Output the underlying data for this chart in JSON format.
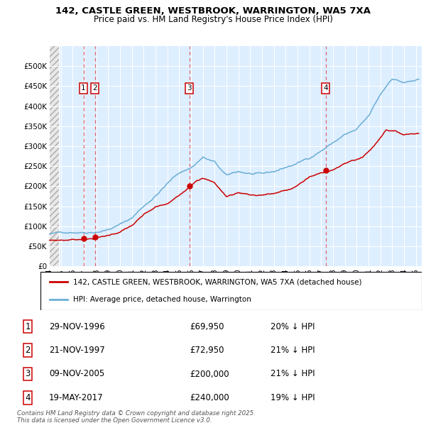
{
  "title_line1": "142, CASTLE GREEN, WESTBROOK, WARRINGTON, WA5 7XA",
  "title_line2": "Price paid vs. HM Land Registry's House Price Index (HPI)",
  "ylim": [
    0,
    550000
  ],
  "yticks": [
    0,
    50000,
    100000,
    150000,
    200000,
    250000,
    300000,
    350000,
    400000,
    450000,
    500000
  ],
  "ytick_labels": [
    "£0",
    "£50K",
    "£100K",
    "£150K",
    "£200K",
    "£250K",
    "£300K",
    "£350K",
    "£400K",
    "£450K",
    "£500K"
  ],
  "hpi_color": "#6baed6",
  "price_color": "#cc0000",
  "vline_color": "#e05050",
  "bg_color": "#ddeeff",
  "sales": [
    {
      "date_num": 1996.91,
      "price": 69950,
      "label": "1",
      "date_str": "29-NOV-1996",
      "pct": "20% ↓ HPI"
    },
    {
      "date_num": 1997.89,
      "price": 72950,
      "label": "2",
      "date_str": "21-NOV-1997",
      "pct": "21% ↓ HPI"
    },
    {
      "date_num": 2005.86,
      "price": 200000,
      "label": "3",
      "date_str": "09-NOV-2005",
      "pct": "21% ↓ HPI"
    },
    {
      "date_num": 2017.38,
      "price": 240000,
      "label": "4",
      "date_str": "19-MAY-2017",
      "pct": "19% ↓ HPI"
    }
  ],
  "legend_line1": "142, CASTLE GREEN, WESTBROOK, WARRINGTON, WA5 7XA (detached house)",
  "legend_line2": "HPI: Average price, detached house, Warrington",
  "footer": "Contains HM Land Registry data © Crown copyright and database right 2025.\nThis data is licensed under the Open Government Licence v3.0.",
  "hpi_key_points": [
    [
      1994.0,
      80000
    ],
    [
      1995.0,
      83000
    ],
    [
      1996.0,
      87000
    ],
    [
      1997.0,
      89000
    ],
    [
      1998.0,
      93000
    ],
    [
      1999.0,
      100000
    ],
    [
      2000.0,
      112000
    ],
    [
      2001.0,
      128000
    ],
    [
      2002.0,
      158000
    ],
    [
      2003.0,
      185000
    ],
    [
      2004.0,
      215000
    ],
    [
      2005.0,
      242000
    ],
    [
      2006.0,
      255000
    ],
    [
      2007.0,
      282000
    ],
    [
      2008.0,
      268000
    ],
    [
      2009.0,
      232000
    ],
    [
      2010.0,
      242000
    ],
    [
      2011.0,
      237000
    ],
    [
      2012.0,
      232000
    ],
    [
      2013.0,
      237000
    ],
    [
      2014.0,
      248000
    ],
    [
      2015.0,
      258000
    ],
    [
      2016.0,
      272000
    ],
    [
      2017.0,
      292000
    ],
    [
      2018.0,
      312000
    ],
    [
      2019.0,
      332000
    ],
    [
      2020.0,
      342000
    ],
    [
      2021.0,
      372000
    ],
    [
      2022.0,
      425000
    ],
    [
      2023.0,
      468000
    ],
    [
      2024.0,
      458000
    ],
    [
      2025.0,
      462000
    ]
  ],
  "price_key_points": [
    [
      1994.0,
      65000
    ],
    [
      1995.5,
      66500
    ],
    [
      1996.91,
      69950
    ],
    [
      1997.89,
      72950
    ],
    [
      1999.0,
      80000
    ],
    [
      2000.0,
      90000
    ],
    [
      2001.0,
      105000
    ],
    [
      2002.0,
      130000
    ],
    [
      2003.0,
      148000
    ],
    [
      2004.0,
      155000
    ],
    [
      2005.0,
      175000
    ],
    [
      2005.86,
      200000
    ],
    [
      2006.5,
      220000
    ],
    [
      2007.0,
      225000
    ],
    [
      2008.0,
      212000
    ],
    [
      2009.0,
      178000
    ],
    [
      2010.0,
      188000
    ],
    [
      2011.5,
      183000
    ],
    [
      2013.0,
      188000
    ],
    [
      2014.5,
      198000
    ],
    [
      2016.0,
      228000
    ],
    [
      2017.38,
      240000
    ],
    [
      2018.5,
      255000
    ],
    [
      2019.5,
      268000
    ],
    [
      2020.5,
      278000
    ],
    [
      2021.5,
      308000
    ],
    [
      2022.5,
      350000
    ],
    [
      2023.0,
      348000
    ],
    [
      2024.0,
      338000
    ],
    [
      2025.0,
      343000
    ]
  ]
}
